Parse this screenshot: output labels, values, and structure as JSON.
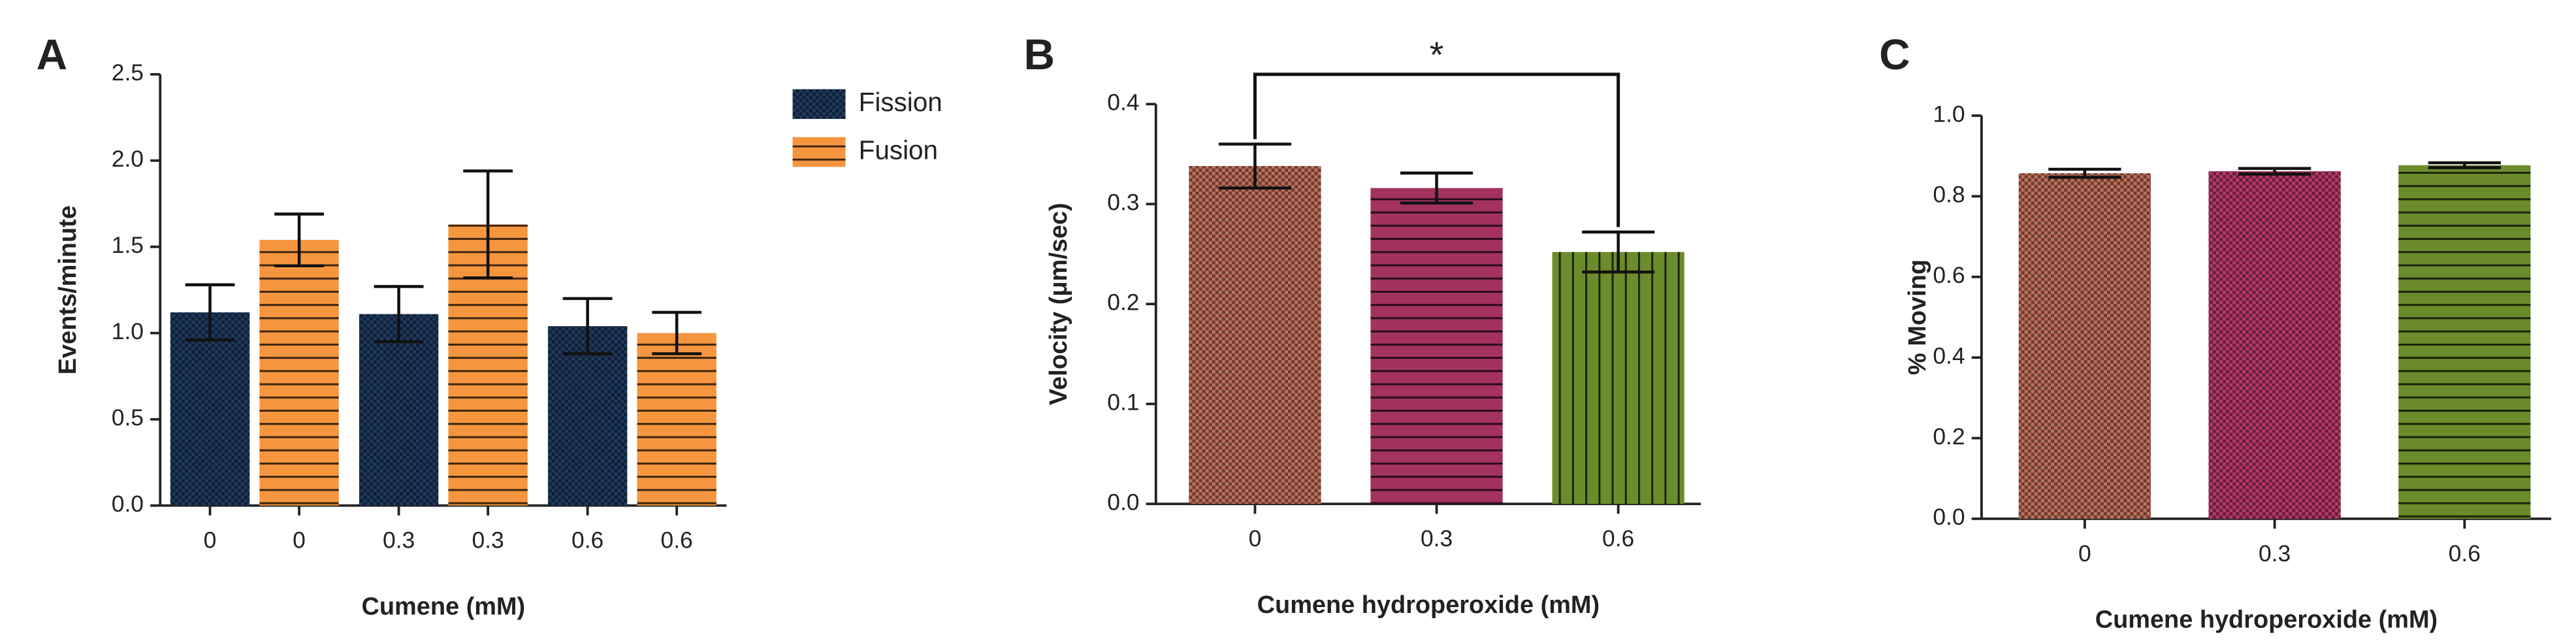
{
  "chart_data": [
    {
      "type": "bar",
      "panel_label": "A",
      "xlabel": "Cumene (mM)",
      "ylabel": "Events/minute",
      "categories": [
        "0",
        "0.3",
        "0.6"
      ],
      "series": [
        {
          "name": "Fission",
          "color": "#1f3a5f",
          "pattern": "checker",
          "values": [
            1.12,
            1.11,
            1.04
          ],
          "errors": [
            0.16,
            0.16,
            0.16
          ]
        },
        {
          "name": "Fusion",
          "color": "#f5963f",
          "pattern": "horizontal",
          "values": [
            1.54,
            1.63,
            1.0
          ],
          "errors": [
            0.15,
            0.31,
            0.12
          ]
        }
      ],
      "ylim": [
        0,
        2.5
      ],
      "yticks": [
        {
          "value": 0,
          "label": "0.0"
        },
        0.5,
        {
          "value": 1,
          "label": "1.0"
        },
        1.5,
        {
          "value": 2,
          "label": "2.0"
        },
        2.5
      ]
    },
    {
      "type": "bar",
      "panel_label": "B",
      "xlabel": "Cumene hydroperoxide (mM)",
      "ylabel": "Velocity (μm/sec)",
      "annotation": "*",
      "categories": [
        "0",
        "0.3",
        "0.6"
      ],
      "values": [
        0.338,
        0.316,
        0.252
      ],
      "errors": [
        0.022,
        0.015,
        0.02
      ],
      "colors": [
        "#c0705a",
        "#a3325e",
        "#6b8c2a"
      ],
      "patterns": [
        "checker",
        "horizontal",
        "vertical"
      ],
      "ylim": [
        0,
        0.4
      ],
      "yticks": [
        {
          "value": 0,
          "label": "0.0"
        },
        0.1,
        0.2,
        0.3,
        0.4
      ]
    },
    {
      "type": "bar",
      "panel_label": "C",
      "xlabel": "Cumene hydroperoxide (mM)",
      "ylabel": "% Moving",
      "categories": [
        "0",
        "0.3",
        "0.6"
      ],
      "values": [
        0.857,
        0.862,
        0.877
      ],
      "errors": [
        0.01,
        0.007,
        0.006
      ],
      "colors": [
        "#c0705a",
        "#b8386a",
        "#6b8c2a"
      ],
      "patterns": [
        "checker",
        "checker",
        "horizontal"
      ],
      "ylim": [
        0,
        1.0
      ],
      "yticks": [
        {
          "value": 0,
          "label": "0.0"
        },
        0.2,
        0.4,
        0.6,
        0.8,
        {
          "value": 1,
          "label": "1.0"
        }
      ]
    }
  ]
}
